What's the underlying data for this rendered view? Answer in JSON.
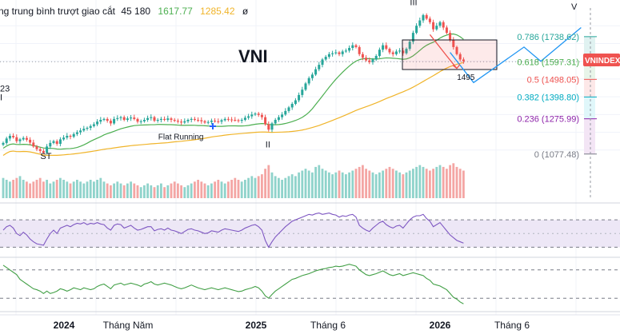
{
  "legend": {
    "name": "ng trung bình trượt giao cắt",
    "params": "45 180",
    "ma_fast": "1617.77",
    "ma_slow": "1285.42",
    "eye_icon": "ø"
  },
  "colors": {
    "up": "#26a69a",
    "down": "#ef5350",
    "ma_fast": "#4caf50",
    "ma_slow": "#f0b429",
    "rsi": "#7e57c2",
    "osc": "#43a047",
    "projection": "#2196f3",
    "fib_0786": "#26a69a",
    "fib_0618": "#4caf50",
    "fib_05": "#ef5350",
    "fib_0382": "#00acc1",
    "fib_0236": "#8e24aa",
    "fib_0": "#787b86",
    "grid": "#f0f3fa"
  },
  "chart_data": {
    "type": "candlestick",
    "title": "VNI",
    "symbol_tag": "VNINDEX",
    "x_axis": {
      "labels": [
        "2024",
        "Tháng Năm",
        "2025",
        "Tháng 6",
        "2026",
        "Tháng 6"
      ],
      "bold": [
        "2024",
        "2025",
        "2026"
      ]
    },
    "price_range": [
      1000,
      1900
    ],
    "closes": [
      1140,
      1165,
      1180,
      1172,
      1150,
      1160,
      1168,
      1158,
      1142,
      1120,
      1105,
      1095,
      1085,
      1120,
      1140,
      1150,
      1135,
      1160,
      1170,
      1180,
      1175,
      1190,
      1200,
      1210,
      1220,
      1225,
      1235,
      1245,
      1260,
      1270,
      1275,
      1265,
      1250,
      1275,
      1280,
      1285,
      1270,
      1278,
      1283,
      1275,
      1260,
      1262,
      1270,
      1280,
      1285,
      1265,
      1270,
      1275,
      1270,
      1278,
      1270,
      1265,
      1260,
      1255,
      1262,
      1270,
      1275,
      1270,
      1268,
      1262,
      1255,
      1258,
      1265,
      1262,
      1260,
      1268,
      1275,
      1272,
      1270,
      1268,
      1265,
      1270,
      1282,
      1290,
      1300,
      1305,
      1298,
      1285,
      1245,
      1215,
      1250,
      1270,
      1285,
      1300,
      1320,
      1340,
      1360,
      1380,
      1410,
      1440,
      1475,
      1505,
      1525,
      1555,
      1580,
      1610,
      1625,
      1640,
      1645,
      1650,
      1640,
      1655,
      1660,
      1675,
      1690,
      1680,
      1640,
      1620,
      1605,
      1595,
      1610,
      1630,
      1665,
      1690,
      1670,
      1650,
      1640,
      1655,
      1660,
      1645,
      1670,
      1710,
      1760,
      1800,
      1830,
      1860,
      1840,
      1820,
      1780,
      1800,
      1820,
      1790,
      1760,
      1720,
      1680,
      1640,
      1610,
      1600
    ],
    "volumes": [
      0.55,
      0.5,
      0.45,
      0.5,
      0.55,
      0.6,
      0.5,
      0.45,
      0.4,
      0.45,
      0.5,
      0.55,
      0.45,
      0.5,
      0.4,
      0.45,
      0.5,
      0.55,
      0.5,
      0.45,
      0.4,
      0.45,
      0.5,
      0.45,
      0.4,
      0.45,
      0.5,
      0.45,
      0.5,
      0.55,
      0.45,
      0.4,
      0.35,
      0.4,
      0.45,
      0.4,
      0.35,
      0.4,
      0.45,
      0.4,
      0.35,
      0.3,
      0.35,
      0.4,
      0.35,
      0.3,
      0.35,
      0.4,
      0.3,
      0.35,
      0.4,
      0.45,
      0.4,
      0.35,
      0.3,
      0.35,
      0.4,
      0.45,
      0.5,
      0.45,
      0.4,
      0.35,
      0.4,
      0.45,
      0.5,
      0.45,
      0.4,
      0.45,
      0.5,
      0.55,
      0.5,
      0.45,
      0.5,
      0.55,
      0.6,
      0.55,
      0.6,
      0.65,
      0.8,
      0.9,
      0.7,
      0.6,
      0.55,
      0.5,
      0.55,
      0.6,
      0.65,
      0.6,
      0.7,
      0.75,
      0.8,
      0.75,
      0.7,
      0.85,
      0.9,
      0.8,
      0.75,
      0.7,
      0.65,
      0.7,
      0.75,
      0.7,
      0.65,
      0.7,
      0.75,
      0.8,
      0.85,
      0.9,
      0.8,
      0.75,
      0.7,
      0.65,
      0.7,
      0.75,
      0.8,
      0.85,
      0.8,
      0.75,
      0.7,
      0.65,
      0.7,
      0.75,
      0.8,
      0.85,
      0.9,
      0.85,
      0.8,
      0.75,
      0.8,
      0.85,
      0.9,
      0.85,
      0.8,
      0.9,
      0.95,
      0.85,
      0.8,
      0.75
    ],
    "fibonacci": [
      {
        "level": "0.786",
        "value": "1738.62",
        "price": 1738.62,
        "color_key": "fib_0786"
      },
      {
        "level": "0.618",
        "value": "1597.31",
        "price": 1597.31,
        "color_key": "fib_0618"
      },
      {
        "level": "0.5",
        "value": "1498.05",
        "price": 1498.05,
        "color_key": "fib_05"
      },
      {
        "level": "0.382",
        "value": "1398.80",
        "price": 1398.8,
        "color_key": "fib_0382"
      },
      {
        "level": "0.236",
        "value": "1275.99",
        "price": 1275.99,
        "color_key": "fib_0236"
      },
      {
        "level": "0",
        "value": "1077.48",
        "price": 1077.48,
        "color_key": "fib_0"
      }
    ],
    "annotations": [
      {
        "text": "ST",
        "index": 12,
        "price": 1050
      },
      {
        "text": "Flat Running",
        "index": 49,
        "price": 1160
      },
      {
        "text": "II",
        "index": 79,
        "price": 1115
      },
      {
        "text": "III",
        "index": 122,
        "price": 1915
      },
      {
        "text": "1495",
        "index": 136,
        "price": 1495
      },
      {
        "text": "V",
        "index": 170,
        "price": 1890
      },
      {
        "text": "I",
        "index": 0,
        "price": 1380
      },
      {
        "text": "23",
        "index": 0,
        "price": 1430
      }
    ],
    "projection_points": [
      {
        "index": 133,
        "price": 1650
      },
      {
        "index": 140,
        "price": 1480
      },
      {
        "index": 155,
        "price": 1680
      },
      {
        "index": 160,
        "price": 1600
      },
      {
        "index": 172,
        "price": 1790
      }
    ],
    "red_projection_points": [
      {
        "index": 127,
        "price": 1750
      },
      {
        "index": 132,
        "price": 1630
      },
      {
        "index": 135,
        "price": 1560
      }
    ],
    "rsi": [
      55,
      60,
      62,
      58,
      50,
      47,
      52,
      48,
      42,
      38,
      35,
      34,
      33,
      42,
      50,
      55,
      50,
      58,
      60,
      62,
      60,
      63,
      65,
      64,
      66,
      63,
      65,
      64,
      66,
      64,
      63,
      58,
      55,
      62,
      64,
      63,
      58,
      60,
      62,
      58,
      55,
      56,
      58,
      60,
      60,
      54,
      56,
      57,
      55,
      58,
      55,
      54,
      52,
      50,
      53,
      56,
      57,
      55,
      54,
      52,
      50,
      51,
      54,
      53,
      52,
      55,
      57,
      56,
      55,
      54,
      53,
      55,
      58,
      60,
      62,
      63,
      60,
      55,
      40,
      30,
      38,
      45,
      50,
      55,
      60,
      64,
      68,
      70,
      72,
      74,
      76,
      78,
      77,
      79,
      80,
      78,
      79,
      80,
      78,
      77,
      74,
      76,
      75,
      77,
      78,
      74,
      62,
      58,
      55,
      53,
      58,
      62,
      66,
      68,
      63,
      60,
      58,
      61,
      62,
      58,
      64,
      70,
      74,
      76,
      76,
      78,
      72,
      68,
      60,
      63,
      66,
      60,
      54,
      48,
      44,
      40,
      38,
      36
    ],
    "oscillator": [
      0.9,
      0.85,
      0.8,
      0.75,
      0.7,
      0.6,
      0.55,
      0.5,
      0.45,
      0.4,
      0.38,
      0.35,
      0.3,
      0.35,
      0.3,
      0.32,
      0.35,
      0.4,
      0.38,
      0.35,
      0.38,
      0.42,
      0.4,
      0.38,
      0.42,
      0.4,
      0.38,
      0.4,
      0.45,
      0.48,
      0.5,
      0.45,
      0.4,
      0.48,
      0.5,
      0.52,
      0.48,
      0.5,
      0.52,
      0.5,
      0.48,
      0.45,
      0.5,
      0.52,
      0.55,
      0.5,
      0.48,
      0.5,
      0.52,
      0.5,
      0.48,
      0.45,
      0.42,
      0.4,
      0.42,
      0.45,
      0.48,
      0.45,
      0.42,
      0.4,
      0.38,
      0.4,
      0.42,
      0.4,
      0.38,
      0.4,
      0.42,
      0.4,
      0.38,
      0.36,
      0.34,
      0.35,
      0.38,
      0.4,
      0.42,
      0.45,
      0.42,
      0.35,
      0.25,
      0.2,
      0.28,
      0.35,
      0.4,
      0.45,
      0.5,
      0.55,
      0.6,
      0.62,
      0.65,
      0.68,
      0.7,
      0.72,
      0.75,
      0.78,
      0.8,
      0.82,
      0.83,
      0.85,
      0.86,
      0.88,
      0.87,
      0.88,
      0.9,
      0.92,
      0.9,
      0.88,
      0.8,
      0.75,
      0.7,
      0.68,
      0.7,
      0.72,
      0.75,
      0.78,
      0.74,
      0.7,
      0.68,
      0.7,
      0.72,
      0.68,
      0.7,
      0.72,
      0.74,
      0.72,
      0.7,
      0.68,
      0.62,
      0.58,
      0.5,
      0.48,
      0.46,
      0.42,
      0.38,
      0.3,
      0.22,
      0.18,
      0.12,
      0.08
    ]
  }
}
